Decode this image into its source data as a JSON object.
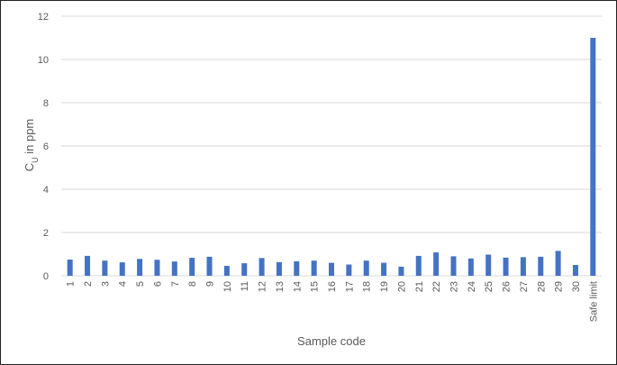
{
  "chart_data": {
    "type": "bar",
    "categories": [
      "1",
      "2",
      "3",
      "4",
      "5",
      "6",
      "7",
      "8",
      "9",
      "10",
      "11",
      "12",
      "13",
      "14",
      "15",
      "16",
      "17",
      "18",
      "19",
      "20",
      "21",
      "22",
      "23",
      "24",
      "25",
      "26",
      "27",
      "28",
      "29",
      "30",
      "Safe limit"
    ],
    "values": [
      0.75,
      0.92,
      0.7,
      0.62,
      0.78,
      0.74,
      0.66,
      0.83,
      0.88,
      0.46,
      0.58,
      0.82,
      0.63,
      0.67,
      0.7,
      0.6,
      0.52,
      0.7,
      0.6,
      0.42,
      0.92,
      1.08,
      0.9,
      0.8,
      0.98,
      0.84,
      0.86,
      0.88,
      1.15,
      0.5,
      11.0
    ],
    "xlabel": "Sample code",
    "ylabel_main": "C",
    "ylabel_sub": "U",
    "ylabel_rest": " in ppm",
    "ylim": [
      0,
      12
    ],
    "yticks": [
      0,
      2,
      4,
      6,
      8,
      10,
      12
    ],
    "grid": true,
    "bar_color": "#4472c4"
  }
}
